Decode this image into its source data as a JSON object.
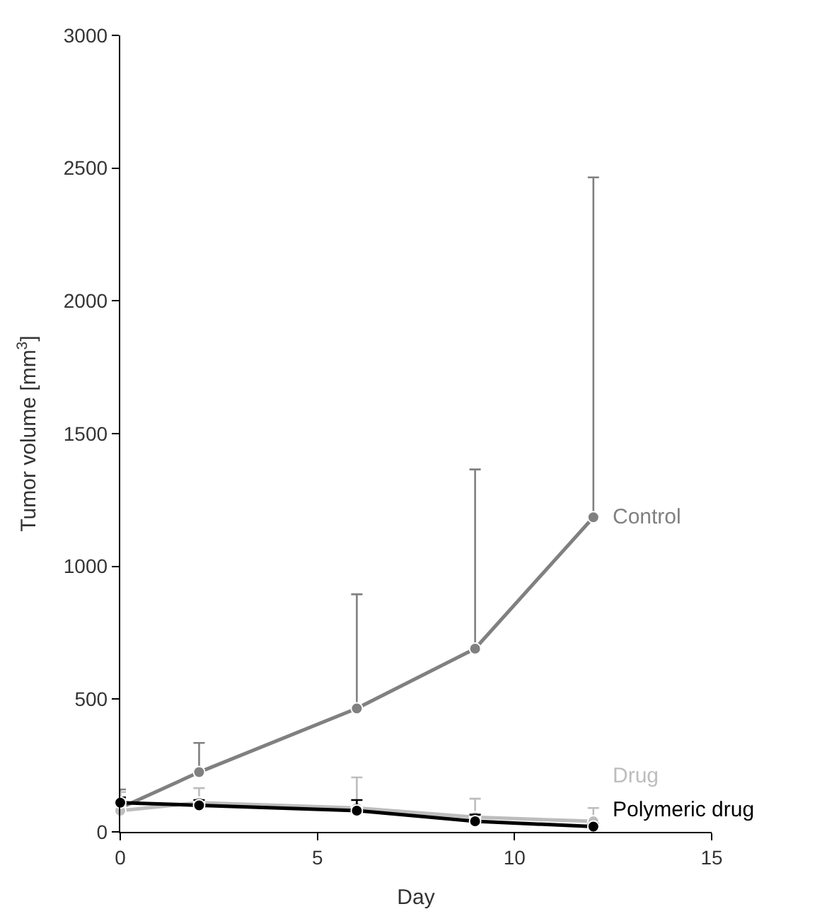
{
  "chart_data": {
    "type": "line",
    "xlabel": "Day",
    "ylabel": "Tumor volume [mm$^{3}$]",
    "x": [
      0,
      2,
      6,
      9,
      12
    ],
    "series": [
      {
        "name": "Control",
        "color": "#808080",
        "values": [
          90,
          225,
          465,
          690,
          1185
        ],
        "errors": [
          [
            90,
            160
          ],
          [
            225,
            335
          ],
          [
            465,
            895
          ],
          [
            690,
            1365
          ],
          [
            1185,
            2465
          ]
        ]
      },
      {
        "name": "Drug",
        "color": "#bdbdbd",
        "values": [
          80,
          110,
          90,
          55,
          40
        ],
        "errors": [
          [
            80,
            150
          ],
          [
            110,
            165
          ],
          [
            90,
            205
          ],
          [
            55,
            125
          ],
          [
            40,
            90
          ]
        ]
      },
      {
        "name": "Polymeric drug",
        "color": "#000000",
        "values": [
          110,
          100,
          80,
          40,
          20
        ],
        "errors": [
          [
            110,
            130
          ],
          [
            100,
            120
          ],
          [
            80,
            120
          ],
          [
            40,
            65
          ],
          [
            20,
            30
          ]
        ]
      }
    ],
    "xlim": [
      0,
      15
    ],
    "xticks": [
      0,
      5,
      10,
      15
    ],
    "ylim": [
      0,
      3000
    ],
    "yticks": [
      0,
      500,
      1000,
      1500,
      2000,
      2500,
      3000
    ],
    "grid": false,
    "legend": false,
    "marker": "circle",
    "line_style": "solid"
  }
}
